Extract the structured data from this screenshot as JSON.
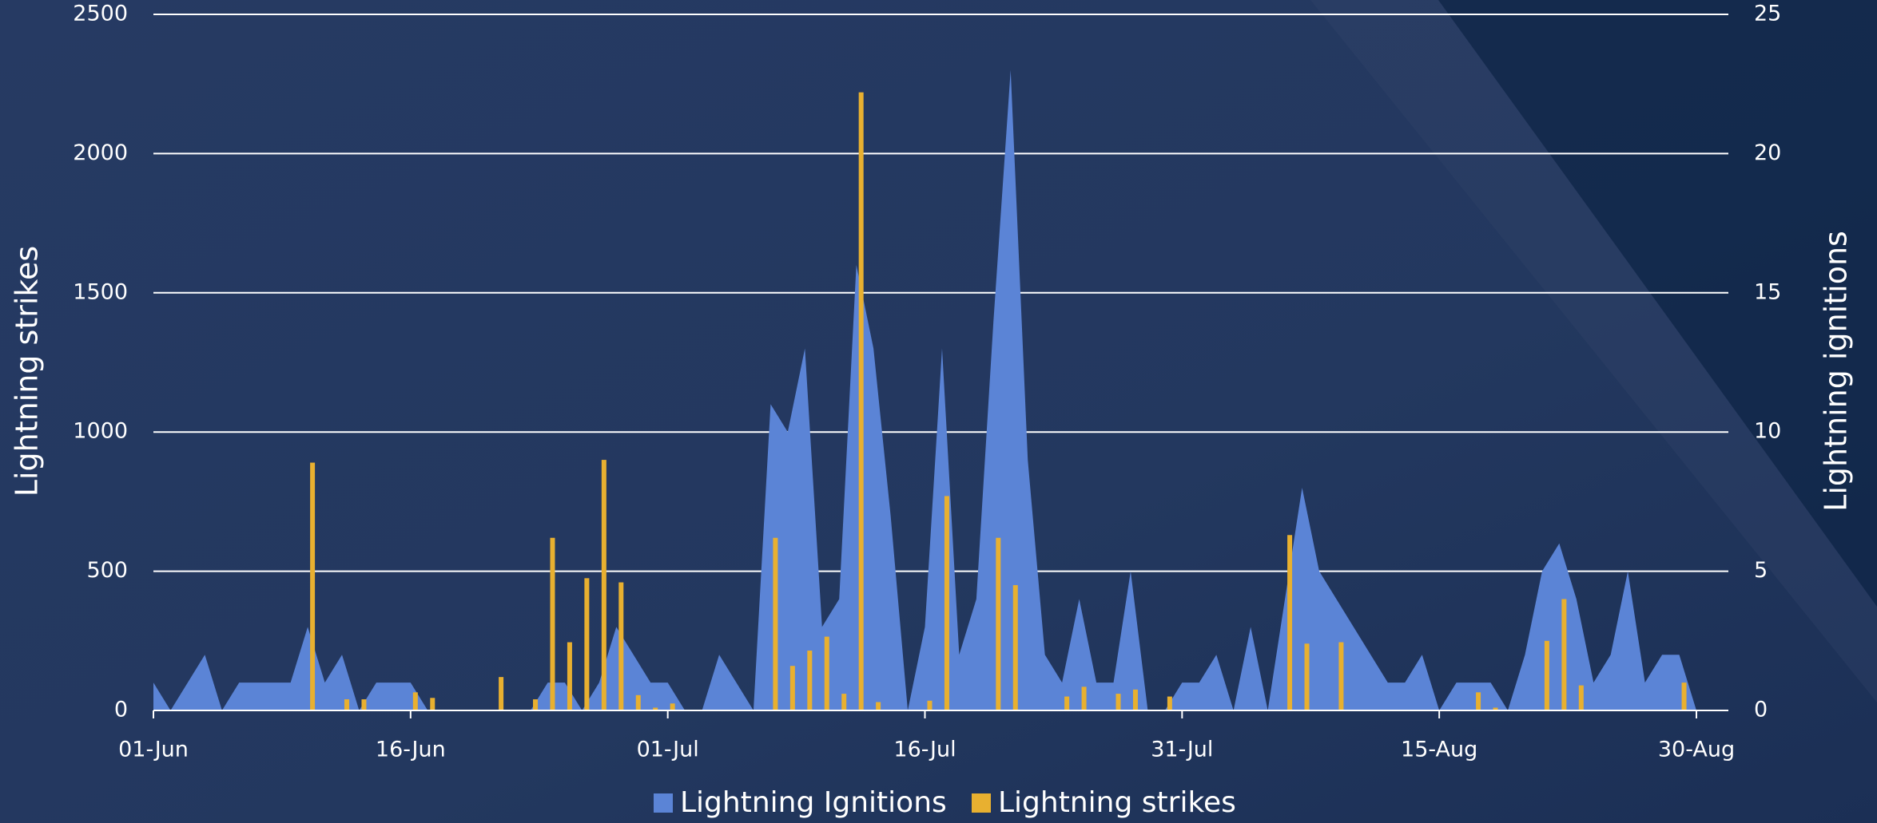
{
  "chart_data": {
    "type": "combo",
    "categories": [
      "01-Jun",
      null,
      null,
      null,
      null,
      null,
      null,
      null,
      null,
      null,
      null,
      null,
      null,
      null,
      null,
      "16-Jun",
      null,
      null,
      null,
      null,
      null,
      null,
      null,
      null,
      null,
      null,
      null,
      null,
      null,
      null,
      "01-Jul",
      null,
      null,
      null,
      null,
      null,
      null,
      null,
      null,
      null,
      null,
      null,
      null,
      null,
      null,
      "16-Jul",
      null,
      null,
      null,
      null,
      null,
      null,
      null,
      null,
      null,
      null,
      null,
      null,
      null,
      null,
      "31-Jul",
      null,
      null,
      null,
      null,
      null,
      null,
      null,
      null,
      null,
      null,
      null,
      null,
      null,
      null,
      "15-Aug",
      null,
      null,
      null,
      null,
      null,
      null,
      null,
      null,
      null,
      null,
      null,
      null,
      null,
      null,
      "30-Aug"
    ],
    "series": [
      {
        "name": "Lightning Ignitions",
        "type": "area",
        "axis": "y2",
        "color": "#5b84d6",
        "values": [
          1,
          0,
          1,
          2,
          0,
          1,
          1,
          1,
          1,
          3,
          1,
          2,
          0,
          1,
          1,
          1,
          0,
          0,
          0,
          0,
          0,
          0,
          0,
          1,
          1,
          0,
          1,
          3,
          2,
          1,
          1,
          0,
          0,
          2,
          1,
          0,
          11,
          10,
          13,
          3,
          4,
          16,
          13,
          7,
          0,
          3,
          13,
          2,
          4,
          14,
          23,
          9,
          2,
          1,
          4,
          1,
          1,
          5,
          0,
          0,
          1,
          1,
          2,
          0,
          3,
          0,
          4,
          8,
          5,
          4,
          3,
          2,
          1,
          1,
          2,
          0,
          1,
          1,
          1,
          0,
          2,
          5,
          6,
          4,
          1,
          2,
          5,
          1,
          2,
          2,
          0
        ]
      },
      {
        "name": "Lightning strikes",
        "type": "bar",
        "axis": "y",
        "color": "#e8b030",
        "values": [
          0,
          0,
          0,
          0,
          0,
          0,
          0,
          0,
          0,
          890,
          0,
          40,
          40,
          0,
          0,
          65,
          45,
          0,
          0,
          0,
          120,
          0,
          40,
          620,
          245,
          475,
          900,
          460,
          55,
          10,
          25,
          0,
          0,
          0,
          0,
          0,
          620,
          160,
          215,
          265,
          60,
          2220,
          30,
          0,
          0,
          35,
          770,
          0,
          0,
          620,
          450,
          0,
          0,
          50,
          85,
          0,
          60,
          75,
          0,
          50,
          0,
          0,
          0,
          0,
          0,
          0,
          630,
          240,
          0,
          245,
          0,
          0,
          0,
          0,
          0,
          0,
          0,
          65,
          10,
          0,
          0,
          250,
          400,
          90,
          0,
          0,
          0,
          0,
          0,
          100,
          0
        ]
      }
    ],
    "y_label": "Lightning strikes",
    "y2_label": "Lightning ignitions",
    "ylim": [
      0,
      2500
    ],
    "yticks": [
      0,
      500,
      1000,
      1500,
      2000,
      2500
    ],
    "y2lim": [
      0,
      25
    ],
    "y2ticks": [
      0,
      5,
      10,
      15,
      20,
      25
    ],
    "grid": true,
    "legend": "bottom"
  }
}
